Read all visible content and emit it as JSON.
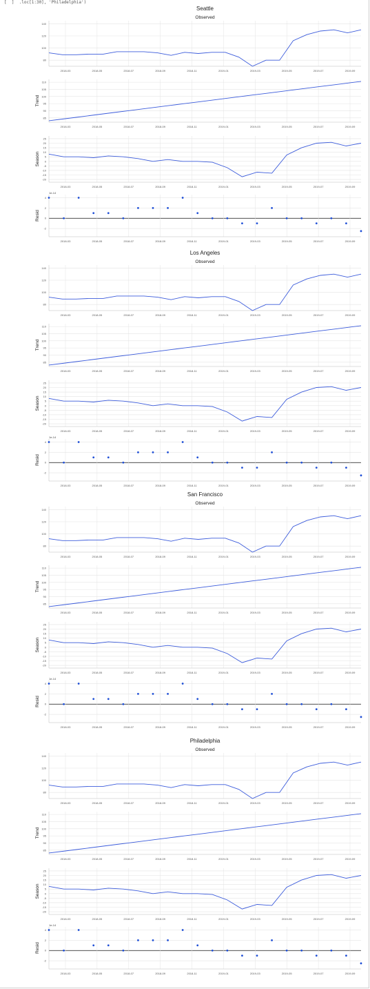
{
  "header": {
    "code_snippet": "[  ]  .loc[1:30], 'Philadelphia')"
  },
  "chart_data": [
    {
      "city": "Seattle",
      "panels": [
        {
          "type": "line",
          "title": "Observed",
          "ylabel": "",
          "yticks": [
            80,
            100,
            120,
            140
          ],
          "ylim": [
            70,
            145
          ],
          "values": [
            92,
            89,
            89,
            90,
            90,
            94,
            94,
            94,
            92,
            88,
            93,
            91,
            93,
            93,
            85,
            70,
            80,
            80,
            112,
            122,
            128,
            130,
            125,
            130
          ]
        },
        {
          "type": "line",
          "title": "",
          "ylabel": "Trend",
          "yticks": [
            85,
            90,
            95,
            100,
            105,
            110
          ],
          "ylim": [
            82,
            112
          ],
          "values": [
            83,
            84.2,
            85.4,
            86.6,
            87.8,
            89,
            90.2,
            91.4,
            92.6,
            93.8,
            95,
            96.2,
            97.4,
            98.6,
            99.8,
            101,
            102.2,
            103.4,
            104.6,
            105.8,
            107,
            108.2,
            109.4,
            110.6
          ]
        },
        {
          "type": "line",
          "title": "",
          "ylabel": "Season",
          "yticks": [
            -20,
            -15,
            -10,
            -5,
            0,
            5,
            10,
            15,
            20,
            25
          ],
          "ylim": [
            -23,
            28
          ],
          "values": [
            8,
            5,
            5,
            4,
            6,
            5,
            3,
            0,
            2,
            0,
            0,
            -1,
            -7,
            -17,
            -12,
            -13,
            7,
            15,
            20,
            21,
            17,
            20
          ]
        },
        {
          "type": "scatter",
          "title": "",
          "ylabel": "Resid",
          "exponent": "1e-14",
          "yticks": [
            -2,
            0,
            2,
            4
          ],
          "ylim": [
            -3.6,
            4.6
          ],
          "values": [
            4,
            0,
            4,
            1,
            1,
            0,
            2,
            2,
            2,
            4,
            1,
            0,
            0,
            -1,
            -1,
            2,
            0,
            0,
            -1,
            0,
            -1,
            -2.5
          ]
        }
      ]
    },
    {
      "city": "Los Angeles",
      "panels": [
        {
          "type": "line",
          "title": "Observed",
          "ylabel": "",
          "yticks": [
            80,
            100,
            120,
            140
          ],
          "ylim": [
            70,
            145
          ],
          "values": [
            92,
            89,
            89,
            90,
            90,
            94,
            94,
            94,
            92,
            88,
            93,
            91,
            93,
            93,
            85,
            70,
            80,
            80,
            112,
            122,
            128,
            130,
            125,
            130
          ]
        },
        {
          "type": "line",
          "title": "",
          "ylabel": "Trend",
          "yticks": [
            85,
            90,
            95,
            100,
            105,
            110
          ],
          "ylim": [
            82,
            112
          ],
          "values": [
            83,
            84.2,
            85.4,
            86.6,
            87.8,
            89,
            90.2,
            91.4,
            92.6,
            93.8,
            95,
            96.2,
            97.4,
            98.6,
            99.8,
            101,
            102.2,
            103.4,
            104.6,
            105.8,
            107,
            108.2,
            109.4,
            110.6
          ]
        },
        {
          "type": "line",
          "title": "",
          "ylabel": "Season",
          "yticks": [
            -20,
            -15,
            -10,
            -5,
            0,
            5,
            10,
            15,
            20,
            25
          ],
          "ylim": [
            -23,
            28
          ],
          "values": [
            8,
            5,
            5,
            4,
            6,
            5,
            3,
            0,
            2,
            0,
            0,
            -1,
            -7,
            -17,
            -12,
            -13,
            7,
            15,
            20,
            21,
            17,
            20
          ]
        },
        {
          "type": "scatter",
          "title": "",
          "ylabel": "Resid",
          "exponent": "1e-14",
          "yticks": [
            -2,
            0,
            2,
            4
          ],
          "ylim": [
            -3.6,
            4.6
          ],
          "values": [
            4,
            0,
            4,
            1,
            1,
            0,
            2,
            2,
            2,
            4,
            1,
            0,
            0,
            -1,
            -1,
            2,
            0,
            0,
            -1,
            0,
            -1,
            -2.5
          ]
        }
      ]
    },
    {
      "city": "San Francisco",
      "panels": [
        {
          "type": "line",
          "title": "Observed",
          "ylabel": "",
          "yticks": [
            80,
            100,
            120,
            140
          ],
          "ylim": [
            70,
            145
          ],
          "values": [
            92,
            89,
            89,
            90,
            90,
            94,
            94,
            94,
            92,
            88,
            93,
            91,
            93,
            93,
            85,
            70,
            80,
            80,
            112,
            122,
            128,
            130,
            125,
            130
          ]
        },
        {
          "type": "line",
          "title": "",
          "ylabel": "Trend",
          "yticks": [
            85,
            90,
            95,
            100,
            105,
            110
          ],
          "ylim": [
            82,
            112
          ],
          "values": [
            83,
            84.2,
            85.4,
            86.6,
            87.8,
            89,
            90.2,
            91.4,
            92.6,
            93.8,
            95,
            96.2,
            97.4,
            98.6,
            99.8,
            101,
            102.2,
            103.4,
            104.6,
            105.8,
            107,
            108.2,
            109.4,
            110.6
          ]
        },
        {
          "type": "line",
          "title": "",
          "ylabel": "Season",
          "yticks": [
            -20,
            -15,
            -10,
            -5,
            0,
            5,
            10,
            15,
            20,
            25
          ],
          "ylim": [
            -23,
            28
          ],
          "values": [
            8,
            5,
            5,
            4,
            6,
            5,
            3,
            0,
            2,
            0,
            0,
            -1,
            -7,
            -17,
            -12,
            -13,
            7,
            15,
            20,
            21,
            17,
            20
          ]
        },
        {
          "type": "scatter",
          "title": "",
          "ylabel": "Resid",
          "exponent": "1e-14",
          "yticks": [
            -2,
            0,
            2,
            4
          ],
          "ylim": [
            -3.6,
            4.6
          ],
          "values": [
            4,
            0,
            4,
            1,
            1,
            0,
            2,
            2,
            2,
            4,
            1,
            0,
            0,
            -1,
            -1,
            2,
            0,
            0,
            -1,
            0,
            -1,
            -2.5
          ]
        }
      ]
    },
    {
      "city": "Philadelphia",
      "panels": [
        {
          "type": "line",
          "title": "Observed",
          "ylabel": "",
          "yticks": [
            80,
            100,
            120,
            140
          ],
          "ylim": [
            70,
            145
          ],
          "values": [
            92,
            89,
            89,
            90,
            90,
            94,
            94,
            94,
            92,
            88,
            93,
            91,
            93,
            93,
            85,
            70,
            80,
            80,
            112,
            122,
            128,
            130,
            125,
            130
          ]
        },
        {
          "type": "line",
          "title": "",
          "ylabel": "Trend",
          "yticks": [
            85,
            90,
            95,
            100,
            105,
            110
          ],
          "ylim": [
            82,
            112
          ],
          "values": [
            83,
            84.2,
            85.4,
            86.6,
            87.8,
            89,
            90.2,
            91.4,
            92.6,
            93.8,
            95,
            96.2,
            97.4,
            98.6,
            99.8,
            101,
            102.2,
            103.4,
            104.6,
            105.8,
            107,
            108.2,
            109.4,
            110.6
          ]
        },
        {
          "type": "line",
          "title": "",
          "ylabel": "Season",
          "yticks": [
            -20,
            -15,
            -10,
            -5,
            0,
            5,
            10,
            15,
            20,
            25
          ],
          "ylim": [
            -23,
            28
          ],
          "values": [
            8,
            5,
            5,
            4,
            6,
            5,
            3,
            0,
            2,
            0,
            0,
            -1,
            -7,
            -17,
            -12,
            -13,
            7,
            15,
            20,
            21,
            17,
            20
          ]
        },
        {
          "type": "scatter",
          "title": "",
          "ylabel": "Resid",
          "exponent": "1e-14",
          "yticks": [
            -2,
            0,
            2,
            4
          ],
          "ylim": [
            -3.6,
            4.6
          ],
          "values": [
            4,
            0,
            4,
            1,
            1,
            0,
            2,
            2,
            2,
            4,
            1,
            0,
            0,
            -1,
            -1,
            2,
            0,
            0,
            -1,
            0,
            -1,
            -2.5
          ]
        }
      ]
    }
  ],
  "shared": {
    "xticks": [
      "2018-03",
      "2018-05",
      "2018-07",
      "2018-09",
      "2018-11",
      "2019-01",
      "2019-03",
      "2019-05",
      "2019-07",
      "2019-09"
    ],
    "colors": {
      "line": "#3b5bdb",
      "marker": "#1f4fd6",
      "grid": "#e3e3e3",
      "zero": "#111111"
    }
  }
}
